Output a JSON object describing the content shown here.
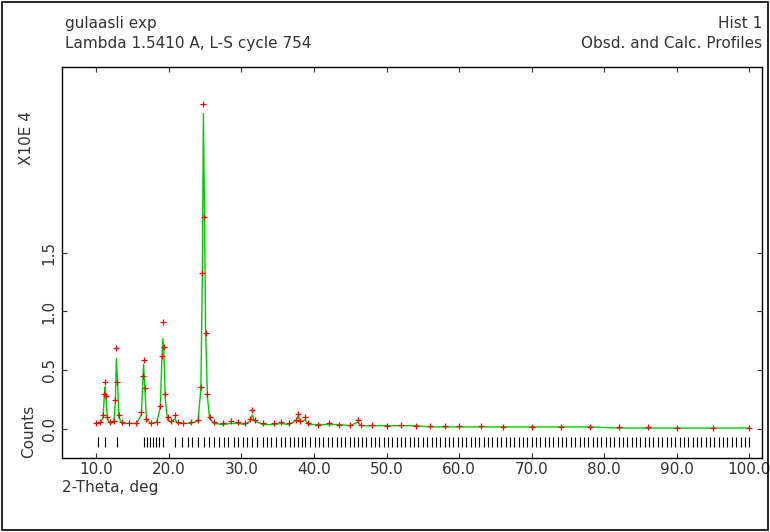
{
  "chart_data": {
    "type": "line",
    "title": "gulaasli exp",
    "subtitle": "Lambda 1.5410 A, L-S cycle 754",
    "annotations": [
      "Hist 1",
      "Obsd. and Calc. Profiles",
      "X10E 4"
    ],
    "x_label": "2-Theta, deg",
    "y_label": "Counts",
    "x": [
      10.0,
      10.5,
      10.9,
      11.1,
      11.2,
      11.3,
      11.5,
      11.9,
      12.4,
      12.6,
      12.75,
      12.9,
      13.1,
      13.5,
      14.5,
      15.5,
      16.2,
      16.4,
      16.5,
      16.65,
      16.9,
      17.5,
      18.3,
      18.8,
      19.0,
      19.15,
      19.3,
      19.5,
      19.8,
      20.3,
      20.8,
      21.2,
      22.0,
      23.0,
      24.0,
      24.4,
      24.6,
      24.75,
      24.9,
      25.05,
      25.3,
      25.6,
      26.2,
      27.5,
      28.5,
      29.5,
      30.5,
      31.2,
      31.5,
      31.8,
      33.0,
      34.5,
      35.5,
      36.5,
      37.5,
      37.8,
      38.1,
      38.8,
      39.2,
      40.5,
      42.0,
      43.5,
      45.0,
      46.0,
      46.5,
      48.0,
      50.0,
      52.0,
      54.0,
      56.0,
      58.0,
      60.0,
      63.0,
      66.0,
      70.0,
      74.0,
      78.0,
      82.0,
      86.0,
      90.0,
      95.0,
      100.0
    ],
    "series": [
      {
        "name": "Obsd.",
        "type": "scatter",
        "color": "#ff0000",
        "marker": "plus",
        "values": [
          0.05,
          0.06,
          0.12,
          0.3,
          0.4,
          0.28,
          0.1,
          0.06,
          0.07,
          0.25,
          0.69,
          0.4,
          0.12,
          0.06,
          0.05,
          0.05,
          0.15,
          0.45,
          0.59,
          0.35,
          0.09,
          0.05,
          0.06,
          0.2,
          0.62,
          0.91,
          0.7,
          0.3,
          0.1,
          0.07,
          0.12,
          0.06,
          0.05,
          0.06,
          0.08,
          0.36,
          1.33,
          2.76,
          1.8,
          0.82,
          0.3,
          0.1,
          0.06,
          0.05,
          0.07,
          0.06,
          0.05,
          0.09,
          0.16,
          0.08,
          0.05,
          0.05,
          0.06,
          0.05,
          0.08,
          0.13,
          0.07,
          0.1,
          0.05,
          0.04,
          0.05,
          0.04,
          0.04,
          0.08,
          0.04,
          0.04,
          0.03,
          0.04,
          0.03,
          0.03,
          0.03,
          0.03,
          0.03,
          0.02,
          0.02,
          0.02,
          0.02,
          0.02,
          0.02,
          0.01,
          0.01,
          0.01
        ]
      },
      {
        "name": "Calc.",
        "type": "line",
        "color": "#00cc00",
        "line_style": "solid",
        "values": [
          0.05,
          0.05,
          0.1,
          0.28,
          0.36,
          0.3,
          0.09,
          0.05,
          0.06,
          0.22,
          0.6,
          0.42,
          0.1,
          0.05,
          0.05,
          0.05,
          0.12,
          0.42,
          0.55,
          0.38,
          0.08,
          0.05,
          0.06,
          0.18,
          0.55,
          0.77,
          0.66,
          0.25,
          0.08,
          0.06,
          0.09,
          0.05,
          0.05,
          0.05,
          0.07,
          0.34,
          1.3,
          2.68,
          1.85,
          0.85,
          0.28,
          0.09,
          0.05,
          0.04,
          0.05,
          0.05,
          0.04,
          0.07,
          0.12,
          0.07,
          0.04,
          0.04,
          0.05,
          0.04,
          0.07,
          0.11,
          0.06,
          0.08,
          0.04,
          0.04,
          0.04,
          0.04,
          0.03,
          0.06,
          0.03,
          0.03,
          0.03,
          0.03,
          0.03,
          0.02,
          0.02,
          0.02,
          0.02,
          0.02,
          0.02,
          0.02,
          0.02,
          0.01,
          0.01,
          0.01,
          0.01,
          0.01
        ]
      }
    ],
    "reflections": [
      10.2,
      11.2,
      12.8,
      16.5,
      17.0,
      17.4,
      17.8,
      18.2,
      18.6,
      19.2,
      20.9,
      21.8,
      22.6,
      23.2,
      24.0,
      24.8,
      25.5,
      26.2,
      26.9,
      27.6,
      28.2,
      28.9,
      29.5,
      30.2,
      30.8,
      31.5,
      32.2,
      32.9,
      33.5,
      34.1,
      34.8,
      35.4,
      36.0,
      36.7,
      37.3,
      37.8,
      38.4,
      38.8,
      39.5,
      40.1,
      40.7,
      41.3,
      41.9,
      42.5,
      43.1,
      43.7,
      44.3,
      44.9,
      45.5,
      46.0,
      46.6,
      47.2,
      47.8,
      48.4,
      49.0,
      49.6,
      50.2,
      50.8,
      51.4,
      52.0,
      52.6,
      53.2,
      53.8,
      54.4,
      55.0,
      55.6,
      56.2,
      56.8,
      57.4,
      58.0,
      58.6,
      59.2,
      59.8,
      60.4,
      61.0,
      61.6,
      62.2,
      62.8,
      63.4,
      64.0,
      64.6,
      65.2,
      65.8,
      66.4,
      67.0,
      67.6,
      68.2,
      68.8,
      69.4,
      70.0,
      70.6,
      71.2,
      71.8,
      72.4,
      73.0,
      73.6,
      74.2,
      74.8,
      75.4,
      76.0,
      76.6,
      77.2,
      77.8,
      78.4,
      79.0,
      79.6,
      80.2,
      80.8,
      81.4,
      82.0,
      82.6,
      83.2,
      83.8,
      84.4,
      85.0,
      85.6,
      86.2,
      86.8,
      87.4,
      88.0,
      88.6,
      89.2,
      89.8,
      90.4,
      91.0,
      91.6,
      92.2,
      92.8,
      93.4,
      94.0,
      94.6,
      95.2,
      95.8,
      96.4,
      97.0,
      97.6,
      98.2,
      98.8,
      99.4,
      100.0
    ],
    "xlim": [
      5.2,
      101.8
    ],
    "ylim": [
      -0.24,
      3.08
    ],
    "xticks": [
      {
        "value": 10,
        "label": "10.0"
      },
      {
        "value": 20,
        "label": "20.0"
      },
      {
        "value": 30,
        "label": "30.0"
      },
      {
        "value": 40,
        "label": "40.0"
      },
      {
        "value": 50,
        "label": "50.0"
      },
      {
        "value": 60,
        "label": "60.0"
      },
      {
        "value": 70,
        "label": "70.0"
      },
      {
        "value": 80,
        "label": "80.0"
      },
      {
        "value": 90,
        "label": "90.0"
      },
      {
        "value": 100,
        "label": "100.0"
      }
    ],
    "yticks": [
      {
        "value": 0,
        "label": "0.0"
      },
      {
        "value": 0.5,
        "label": "0.5"
      },
      {
        "value": 1.0,
        "label": "1.0"
      },
      {
        "value": 1.5,
        "label": "1.5"
      }
    ],
    "grid": false
  }
}
